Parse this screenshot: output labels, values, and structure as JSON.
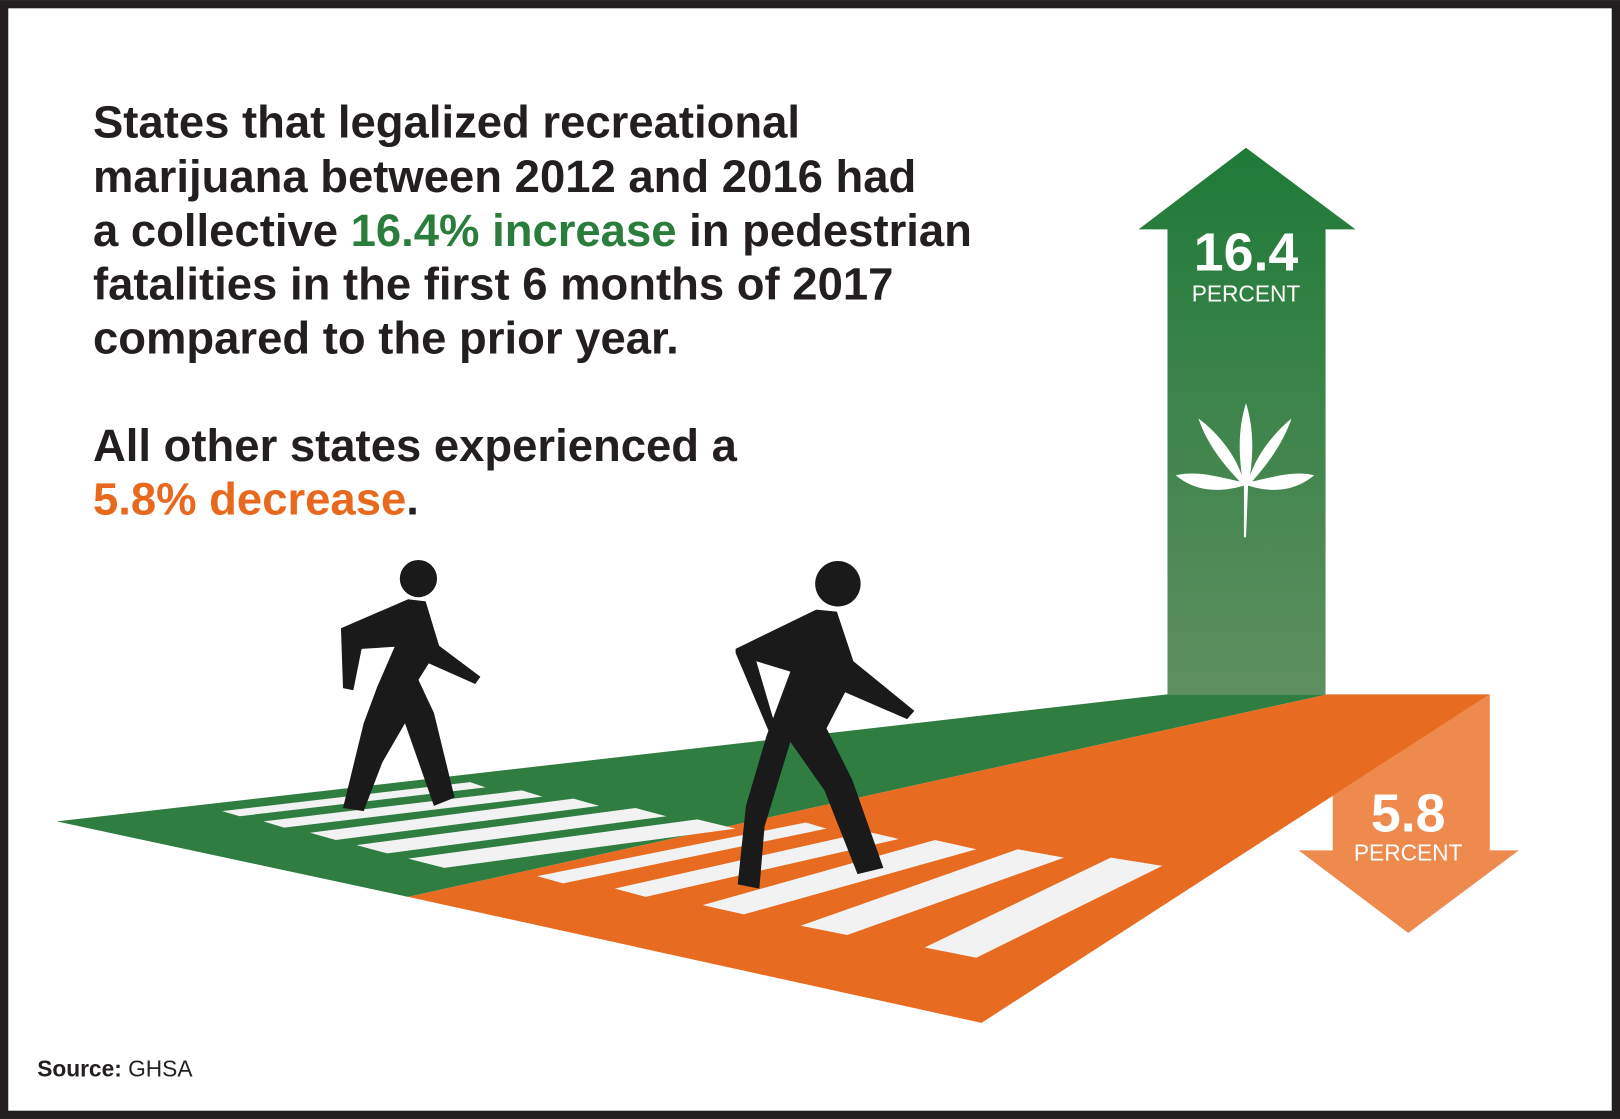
{
  "headline": {
    "line_1": "States that legalized recreational",
    "line_2": "marijuana between 2012 and 2016 had",
    "line_3": {
      "before": "a collective ",
      "highlight": "16.4% increase",
      "after": " in pedestrian"
    },
    "line_4": "fatalities in the first 6 months of 2017",
    "line_5": "compared to the prior year."
  },
  "subline": {
    "line_1": "All other states experienced a",
    "highlight": "5.8% decrease",
    "end": "."
  },
  "increase_arrow": {
    "value": "16.4",
    "unit": "PERCENT"
  },
  "decrease_arrow": {
    "value": "5.8",
    "unit": "PERCENT"
  },
  "source": {
    "label": "Source:",
    "text": "GHSA"
  }
}
